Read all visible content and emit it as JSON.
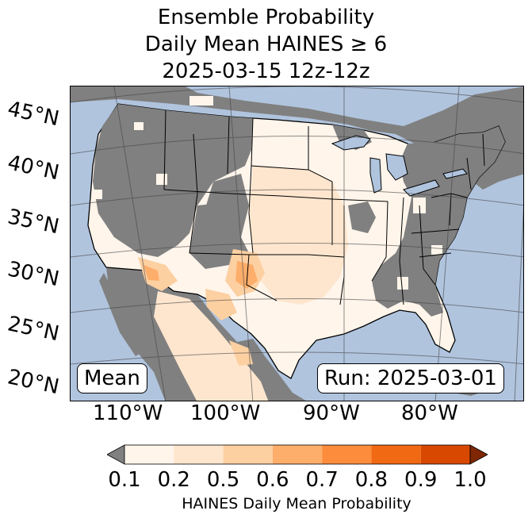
{
  "title": {
    "line1": "Ensemble Probability",
    "line2": "Daily Mean HAINES ≥ 6",
    "line3": "2025-03-15 12z-12z"
  },
  "map": {
    "lat_labels": [
      "45°N",
      "40°N",
      "35°N",
      "30°N",
      "25°N",
      "20°N"
    ],
    "lon_labels": [
      "110°W",
      "100°W",
      "90°W",
      "80°W"
    ],
    "mean_label": "Mean",
    "run_label": "Run: 2025-03-01",
    "colors": {
      "ocean": "#b0c4de",
      "land_masked": "#808080",
      "prob_0_1": "#fff5eb",
      "prob_0_2": "#fee6ce",
      "prob_0_5": "#fdd0a2",
      "prob_0_6": "#fdae6b",
      "prob_0_7": "#fd8d3c",
      "prob_0_8": "#f16913",
      "prob_0_9": "#d94801",
      "prob_1_0": "#a63603"
    }
  },
  "colorbar": {
    "ticks": [
      "0.1",
      "0.2",
      "0.5",
      "0.6",
      "0.7",
      "0.8",
      "0.9",
      "1.0"
    ],
    "label": "HAINES Daily Mean Probability",
    "under_color": "#808080",
    "over_color": "#7f2704",
    "colors": [
      "#fff5eb",
      "#fee6ce",
      "#fdd0a2",
      "#fdae6b",
      "#fd8d3c",
      "#f16913",
      "#d94801"
    ]
  }
}
